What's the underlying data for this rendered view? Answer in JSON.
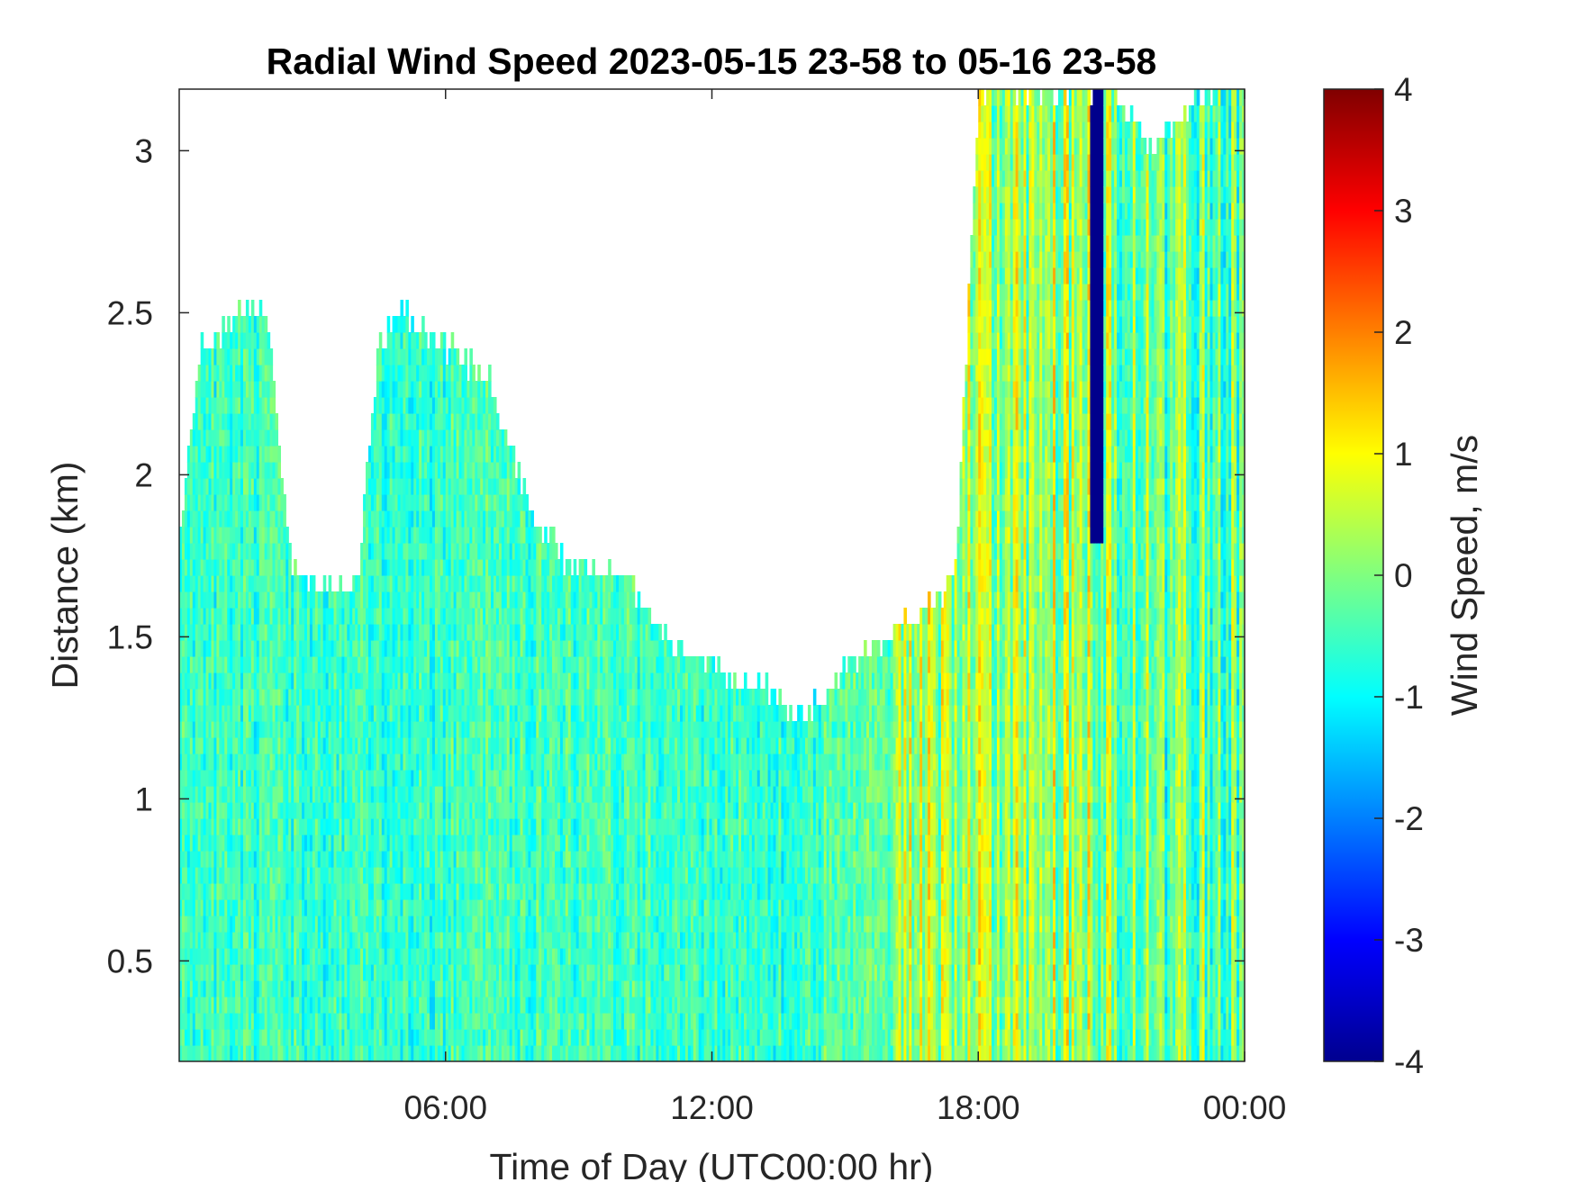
{
  "chart_data": {
    "type": "heatmap",
    "title": "Radial Wind Speed 2023-05-15 23-58 to 05-16 23-58",
    "xlabel": "Time of Day (UTC00:00 hr)",
    "ylabel": "Distance (km)",
    "colorbar_label": "Wind Speed, m/s",
    "colormap": "jet",
    "xlim": [
      0,
      24
    ],
    "ylim": [
      0.19,
      3.19
    ],
    "clim": [
      -4,
      4
    ],
    "x_ticks": [
      {
        "value": 6,
        "label": "06:00"
      },
      {
        "value": 12,
        "label": "12:00"
      },
      {
        "value": 18,
        "label": "18:00"
      },
      {
        "value": 24,
        "label": "00:00"
      }
    ],
    "y_ticks": [
      {
        "value": 0.5,
        "label": "0.5"
      },
      {
        "value": 1,
        "label": "1"
      },
      {
        "value": 1.5,
        "label": "1.5"
      },
      {
        "value": 2,
        "label": "2"
      },
      {
        "value": 2.5,
        "label": "2.5"
      },
      {
        "value": 3,
        "label": "3"
      }
    ],
    "colorbar_ticks": [
      {
        "value": 4,
        "label": "4"
      },
      {
        "value": 3,
        "label": "3"
      },
      {
        "value": 2,
        "label": "2"
      },
      {
        "value": 1,
        "label": "1"
      },
      {
        "value": 0,
        "label": "0"
      },
      {
        "value": -1,
        "label": "-1"
      },
      {
        "value": -2,
        "label": "-2"
      },
      {
        "value": -3,
        "label": "-3"
      },
      {
        "value": -4,
        "label": "-4"
      }
    ],
    "data_top_km": [
      [
        0.0,
        1.8
      ],
      [
        0.5,
        2.4
      ],
      [
        1.5,
        2.5
      ],
      [
        2.0,
        2.5
      ],
      [
        2.5,
        1.75
      ],
      [
        3.0,
        1.65
      ],
      [
        4.0,
        1.65
      ],
      [
        4.5,
        2.4
      ],
      [
        5.0,
        2.5
      ],
      [
        6.0,
        2.4
      ],
      [
        7.0,
        2.3
      ],
      [
        8.0,
        1.85
      ],
      [
        9.0,
        1.7
      ],
      [
        10.0,
        1.7
      ],
      [
        11.0,
        1.5
      ],
      [
        12.0,
        1.4
      ],
      [
        13.0,
        1.35
      ],
      [
        14.0,
        1.25
      ],
      [
        15.0,
        1.4
      ],
      [
        16.0,
        1.5
      ],
      [
        17.0,
        1.6
      ],
      [
        17.5,
        1.7
      ],
      [
        18.0,
        3.19
      ],
      [
        19.0,
        3.19
      ],
      [
        20.0,
        3.19
      ],
      [
        21.0,
        3.19
      ],
      [
        22.0,
        3.0
      ],
      [
        23.0,
        3.19
      ],
      [
        24.0,
        3.19
      ]
    ],
    "segments": [
      {
        "x_start": 0,
        "x_end": 6,
        "typical_speed_ms": -0.6
      },
      {
        "x_start": 6,
        "x_end": 11,
        "typical_speed_ms": -0.5
      },
      {
        "x_start": 11,
        "x_end": 14.5,
        "typical_speed_ms": -0.6
      },
      {
        "x_start": 14.5,
        "x_end": 16,
        "typical_speed_ms": -0.3
      },
      {
        "x_start": 16,
        "x_end": 21,
        "typical_speed_ms": 0.3
      },
      {
        "x_start": 21,
        "x_end": 24,
        "typical_speed_ms": -0.2
      }
    ],
    "features": [
      {
        "x_start": 20.5,
        "x_end": 20.8,
        "y_from_km": 1.8,
        "y_to_km": 3.19,
        "speed_ms": -3.9
      }
    ]
  }
}
